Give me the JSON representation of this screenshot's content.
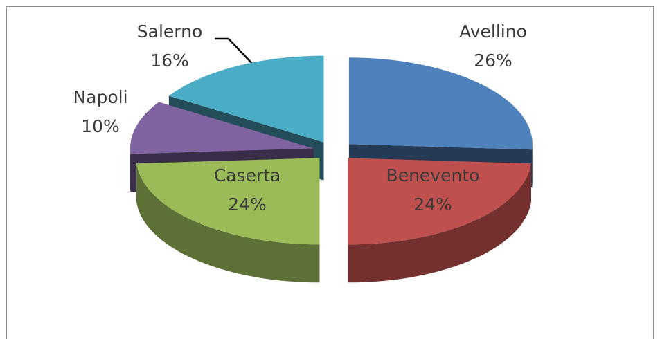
{
  "chart_data": {
    "type": "pie",
    "categories": [
      "Avellino",
      "Benevento",
      "Caserta",
      "Napoli",
      "Salerno"
    ],
    "values": [
      26,
      24,
      24,
      10,
      16
    ],
    "value_labels": [
      "26%",
      "24%",
      "24%",
      "10%",
      "16%"
    ],
    "colors": [
      "#4f81bd",
      "#c0504d",
      "#9bbb59",
      "#8064a2",
      "#4bacc6"
    ]
  }
}
